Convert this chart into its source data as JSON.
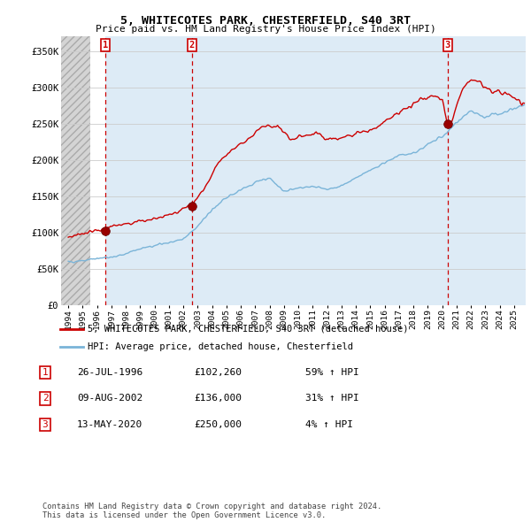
{
  "title": "5, WHITECOTES PARK, CHESTERFIELD, S40 3RT",
  "subtitle": "Price paid vs. HM Land Registry's House Price Index (HPI)",
  "ylim": [
    0,
    370000
  ],
  "yticks": [
    0,
    50000,
    100000,
    150000,
    200000,
    250000,
    300000,
    350000
  ],
  "ytick_labels": [
    "£0",
    "£50K",
    "£100K",
    "£150K",
    "£200K",
    "£250K",
    "£300K",
    "£350K"
  ],
  "sale_dates": [
    1996.57,
    2002.6,
    2020.36
  ],
  "sale_prices": [
    102260,
    136000,
    250000
  ],
  "sale_labels": [
    "1",
    "2",
    "3"
  ],
  "hpi_color": "#7ab4d8",
  "price_color": "#cc0000",
  "marker_color": "#990000",
  "hatch_color": "#c8c8c8",
  "shade_color": "#d8e8f5",
  "grid_color": "#cccccc",
  "vline_color": "#cc0000",
  "legend_label_price": "5, WHITECOTES PARK, CHESTERFIELD, S40 3RT (detached house)",
  "legend_label_hpi": "HPI: Average price, detached house, Chesterfield",
  "table_rows": [
    {
      "num": "1",
      "date": "26-JUL-1996",
      "price": "£102,260",
      "change": "59% ↑ HPI"
    },
    {
      "num": "2",
      "date": "09-AUG-2002",
      "price": "£136,000",
      "change": "31% ↑ HPI"
    },
    {
      "num": "3",
      "date": "13-MAY-2020",
      "price": "£250,000",
      "change": "4% ↑ HPI"
    }
  ],
  "footer": "Contains HM Land Registry data © Crown copyright and database right 2024.\nThis data is licensed under the Open Government Licence v3.0.",
  "xlim": [
    1993.5,
    2025.8
  ],
  "xticks": [
    1994,
    1995,
    1996,
    1997,
    1998,
    1999,
    2000,
    2001,
    2002,
    2003,
    2004,
    2005,
    2006,
    2007,
    2008,
    2009,
    2010,
    2011,
    2012,
    2013,
    2014,
    2015,
    2016,
    2017,
    2018,
    2019,
    2020,
    2021,
    2022,
    2023,
    2024,
    2025
  ]
}
